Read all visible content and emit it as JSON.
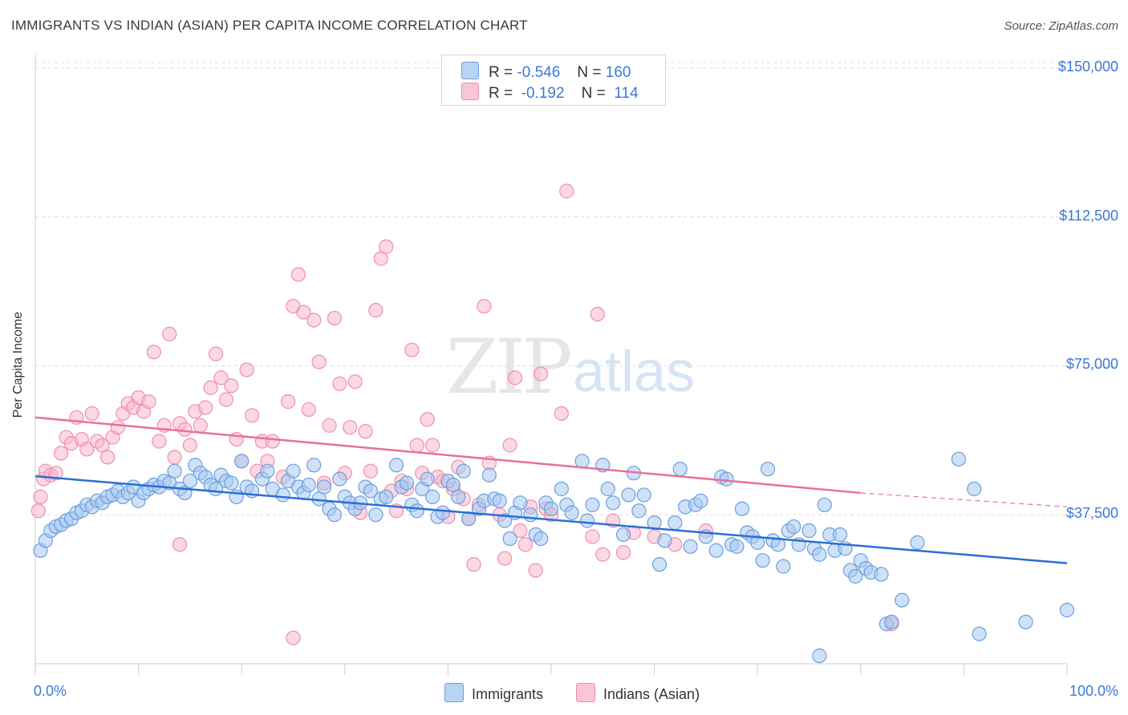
{
  "header": {
    "title": "IMMIGRANTS VS INDIAN (ASIAN) PER CAPITA INCOME CORRELATION CHART",
    "source": "Source: ZipAtlas.com"
  },
  "watermark": {
    "zip": "ZIP",
    "atlas": "atlas"
  },
  "legend_top": {
    "rows": [
      {
        "r_label": "R =",
        "r_value": "-0.546",
        "n_label": "N =",
        "n_value": "160"
      },
      {
        "r_label": "R =",
        "r_value": "-0.192",
        "n_label": "N =",
        "n_value": "114"
      }
    ]
  },
  "legend_bottom": [
    "Immigrants",
    "Indians (Asian)"
  ],
  "colors": {
    "immigrants_fill": "#a8c8f0",
    "immigrants_stroke": "#6a9fe0",
    "immigrants_line": "#2a6fd6",
    "indians_fill": "#f7b8cc",
    "indians_stroke": "#ee8fae",
    "indians_line": "#e8709a",
    "tick_text": "#3b78d8",
    "grid": "#dddddd"
  },
  "chart_data": {
    "type": "scatter",
    "title": "IMMIGRANTS VS INDIAN (ASIAN) PER CAPITA INCOME CORRELATION CHART",
    "xlabel": "",
    "ylabel": "Per Capita Income",
    "xlim": [
      0,
      100
    ],
    "ylim": [
      0,
      155000
    ],
    "y_ticks": [
      {
        "value": 37500,
        "label": "$37,500"
      },
      {
        "value": 75000,
        "label": "$75,000"
      },
      {
        "value": 112500,
        "label": "$112,500"
      },
      {
        "value": 150000,
        "label": "$150,000"
      }
    ],
    "x_tick_labels": [
      {
        "value": 0,
        "label": "0.0%"
      },
      {
        "value": 100,
        "label": "100.0%"
      }
    ],
    "grid": true,
    "legend_position": "top-center",
    "series": [
      {
        "name": "Immigrants",
        "R": -0.546,
        "N": 160,
        "trend": {
          "x0": 0,
          "y0": 47200,
          "x1": 100,
          "y1": 25300
        },
        "points": [
          [
            0.5,
            28500
          ],
          [
            1,
            31000
          ],
          [
            1.5,
            33500
          ],
          [
            2,
            34500
          ],
          [
            2.5,
            35000
          ],
          [
            3,
            36000
          ],
          [
            3.5,
            36500
          ],
          [
            4,
            38000
          ],
          [
            4.5,
            38500
          ],
          [
            5,
            40000
          ],
          [
            5.5,
            39500
          ],
          [
            6,
            41000
          ],
          [
            6.5,
            40500
          ],
          [
            7,
            42000
          ],
          [
            7.5,
            42500
          ],
          [
            8,
            43500
          ],
          [
            8.5,
            42000
          ],
          [
            9,
            43000
          ],
          [
            9.5,
            44500
          ],
          [
            10,
            41000
          ],
          [
            10.5,
            43000
          ],
          [
            11,
            44000
          ],
          [
            11.5,
            45000
          ],
          [
            12,
            44500
          ],
          [
            12.5,
            46000
          ],
          [
            13,
            45500
          ],
          [
            13.5,
            48500
          ],
          [
            14,
            44000
          ],
          [
            14.5,
            43000
          ],
          [
            15,
            46000
          ],
          [
            15.5,
            50000
          ],
          [
            16,
            48000
          ],
          [
            16.5,
            47000
          ],
          [
            17,
            45000
          ],
          [
            17.5,
            44000
          ],
          [
            18,
            47500
          ],
          [
            18.5,
            46000
          ],
          [
            19,
            45500
          ],
          [
            19.5,
            42000
          ],
          [
            20,
            51000
          ],
          [
            20.5,
            44500
          ],
          [
            21,
            43500
          ],
          [
            22,
            46500
          ],
          [
            22.5,
            48500
          ],
          [
            23,
            44000
          ],
          [
            24,
            42500
          ],
          [
            24.5,
            46000
          ],
          [
            25,
            48500
          ],
          [
            25.5,
            44500
          ],
          [
            26,
            43000
          ],
          [
            26.5,
            45000
          ],
          [
            27,
            50000
          ],
          [
            27.5,
            41500
          ],
          [
            28,
            44500
          ],
          [
            28.5,
            39000
          ],
          [
            29,
            37500
          ],
          [
            29.5,
            46500
          ],
          [
            30,
            42000
          ],
          [
            30.5,
            40500
          ],
          [
            31,
            39000
          ],
          [
            31.5,
            40500
          ],
          [
            32,
            44500
          ],
          [
            32.5,
            43500
          ],
          [
            33,
            37500
          ],
          [
            33.5,
            41500
          ],
          [
            34,
            42000
          ],
          [
            35,
            50000
          ],
          [
            35.5,
            44500
          ],
          [
            36,
            45500
          ],
          [
            36.5,
            40000
          ],
          [
            37,
            38500
          ],
          [
            37.5,
            44000
          ],
          [
            38,
            46500
          ],
          [
            38.5,
            42000
          ],
          [
            39,
            37000
          ],
          [
            39.5,
            38000
          ],
          [
            40,
            46000
          ],
          [
            40.5,
            45000
          ],
          [
            41,
            42000
          ],
          [
            41.5,
            48500
          ],
          [
            42,
            36500
          ],
          [
            43,
            39000
          ],
          [
            43.5,
            41000
          ],
          [
            44,
            47500
          ],
          [
            44.5,
            41500
          ],
          [
            45,
            41000
          ],
          [
            45.5,
            36000
          ],
          [
            46,
            31500
          ],
          [
            46.5,
            38000
          ],
          [
            47,
            40500
          ],
          [
            48,
            37500
          ],
          [
            48.5,
            32500
          ],
          [
            49,
            31500
          ],
          [
            49.5,
            40500
          ],
          [
            50,
            39000
          ],
          [
            51,
            44000
          ],
          [
            51.5,
            40000
          ],
          [
            52,
            38000
          ],
          [
            53,
            51000
          ],
          [
            53.5,
            36000
          ],
          [
            54,
            40000
          ],
          [
            55,
            50000
          ],
          [
            55.5,
            44000
          ],
          [
            56,
            40500
          ],
          [
            57,
            32500
          ],
          [
            57.5,
            42500
          ],
          [
            58,
            48000
          ],
          [
            58.5,
            38500
          ],
          [
            59,
            42500
          ],
          [
            60,
            35500
          ],
          [
            60.5,
            25000
          ],
          [
            61,
            31000
          ],
          [
            62,
            35500
          ],
          [
            62.5,
            49000
          ],
          [
            63,
            39500
          ],
          [
            63.5,
            29500
          ],
          [
            64,
            40000
          ],
          [
            64.5,
            41000
          ],
          [
            65,
            32000
          ],
          [
            66,
            28500
          ],
          [
            66.5,
            47000
          ],
          [
            67,
            46500
          ],
          [
            67.5,
            30000
          ],
          [
            68,
            29500
          ],
          [
            68.5,
            39000
          ],
          [
            69,
            33000
          ],
          [
            69.5,
            32000
          ],
          [
            70,
            30500
          ],
          [
            70.5,
            26000
          ],
          [
            71,
            49000
          ],
          [
            71.5,
            31000
          ],
          [
            72,
            30000
          ],
          [
            72.5,
            24500
          ],
          [
            73,
            33500
          ],
          [
            73.5,
            34500
          ],
          [
            74,
            30000
          ],
          [
            75,
            33500
          ],
          [
            75.5,
            29000
          ],
          [
            76,
            27500
          ],
          [
            76.5,
            40000
          ],
          [
            77,
            32500
          ],
          [
            77.5,
            28500
          ],
          [
            78,
            32500
          ],
          [
            78.5,
            29000
          ],
          [
            79,
            23500
          ],
          [
            79.5,
            22000
          ],
          [
            80,
            26000
          ],
          [
            80.5,
            24000
          ],
          [
            81,
            23000
          ],
          [
            82,
            22500
          ],
          [
            82.5,
            10000
          ],
          [
            83,
            10500
          ],
          [
            84,
            16000
          ],
          [
            85.5,
            30500
          ],
          [
            89.5,
            51500
          ],
          [
            91,
            44000
          ],
          [
            91.5,
            7500
          ],
          [
            96,
            10500
          ],
          [
            100,
            13500
          ],
          [
            76,
            2000
          ]
        ]
      },
      {
        "name": "Indians (Asian)",
        "R": -0.192,
        "N": 114,
        "trend": {
          "x0": 0,
          "y0": 62000,
          "x1": 80,
          "y1": 43000,
          "dash_to_x": 100,
          "dash_to_y": 39500
        },
        "points": [
          [
            0.3,
            38500
          ],
          [
            0.5,
            42000
          ],
          [
            0.8,
            46500
          ],
          [
            1,
            48500
          ],
          [
            1.5,
            47500
          ],
          [
            2,
            48000
          ],
          [
            2.5,
            53000
          ],
          [
            3,
            57000
          ],
          [
            3.5,
            55500
          ],
          [
            4,
            62000
          ],
          [
            4.5,
            56500
          ],
          [
            5,
            54000
          ],
          [
            5.5,
            63000
          ],
          [
            6,
            56000
          ],
          [
            6.5,
            55000
          ],
          [
            7,
            52000
          ],
          [
            7.5,
            57000
          ],
          [
            8,
            59500
          ],
          [
            8.5,
            63000
          ],
          [
            9,
            65500
          ],
          [
            9.5,
            64500
          ],
          [
            10,
            67000
          ],
          [
            10.5,
            63500
          ],
          [
            11,
            66000
          ],
          [
            11.5,
            78500
          ],
          [
            12,
            56000
          ],
          [
            12.5,
            60000
          ],
          [
            13,
            83000
          ],
          [
            13.5,
            52000
          ],
          [
            14,
            60500
          ],
          [
            14.5,
            59000
          ],
          [
            15,
            55000
          ],
          [
            15.5,
            63500
          ],
          [
            16,
            60000
          ],
          [
            16.5,
            64500
          ],
          [
            17,
            69500
          ],
          [
            17.5,
            78000
          ],
          [
            18,
            72000
          ],
          [
            18.5,
            66500
          ],
          [
            19,
            70000
          ],
          [
            19.5,
            56500
          ],
          [
            20,
            51000
          ],
          [
            20.5,
            74000
          ],
          [
            21,
            62500
          ],
          [
            21.5,
            48500
          ],
          [
            22,
            56000
          ],
          [
            22.5,
            51000
          ],
          [
            23,
            56000
          ],
          [
            24,
            47000
          ],
          [
            24.5,
            66000
          ],
          [
            25,
            90000
          ],
          [
            25.5,
            98000
          ],
          [
            26,
            88500
          ],
          [
            26.5,
            64000
          ],
          [
            27,
            86500
          ],
          [
            27.5,
            76000
          ],
          [
            28,
            45500
          ],
          [
            28.5,
            60000
          ],
          [
            29,
            87000
          ],
          [
            29.5,
            70500
          ],
          [
            30,
            48000
          ],
          [
            30.5,
            59500
          ],
          [
            31,
            71000
          ],
          [
            31.5,
            38000
          ],
          [
            32,
            58500
          ],
          [
            32.5,
            48500
          ],
          [
            33,
            89000
          ],
          [
            33.5,
            102000
          ],
          [
            34,
            105000
          ],
          [
            34.5,
            43500
          ],
          [
            35,
            38500
          ],
          [
            35.5,
            46000
          ],
          [
            36,
            44000
          ],
          [
            36.5,
            79000
          ],
          [
            37,
            55000
          ],
          [
            37.5,
            48000
          ],
          [
            38,
            61500
          ],
          [
            38.5,
            55000
          ],
          [
            39,
            47000
          ],
          [
            39.5,
            46000
          ],
          [
            40,
            37000
          ],
          [
            40.5,
            44000
          ],
          [
            41,
            49500
          ],
          [
            41.5,
            41500
          ],
          [
            42,
            36500
          ],
          [
            42.5,
            25000
          ],
          [
            43,
            40000
          ],
          [
            43.5,
            90000
          ],
          [
            44,
            50500
          ],
          [
            45,
            37500
          ],
          [
            45.5,
            26500
          ],
          [
            46,
            55000
          ],
          [
            46.5,
            72000
          ],
          [
            47,
            33500
          ],
          [
            47.5,
            30000
          ],
          [
            48,
            39500
          ],
          [
            48.5,
            23500
          ],
          [
            49,
            73000
          ],
          [
            49.5,
            39000
          ],
          [
            50,
            37500
          ],
          [
            51,
            63000
          ],
          [
            51.5,
            119000
          ],
          [
            54,
            32000
          ],
          [
            54.5,
            88000
          ],
          [
            55,
            27500
          ],
          [
            56,
            36000
          ],
          [
            57,
            28000
          ],
          [
            58,
            33000
          ],
          [
            60,
            32000
          ],
          [
            62,
            30000
          ],
          [
            65,
            33500
          ],
          [
            14,
            30000
          ],
          [
            25,
            6500
          ],
          [
            83,
            10000
          ]
        ]
      }
    ]
  }
}
